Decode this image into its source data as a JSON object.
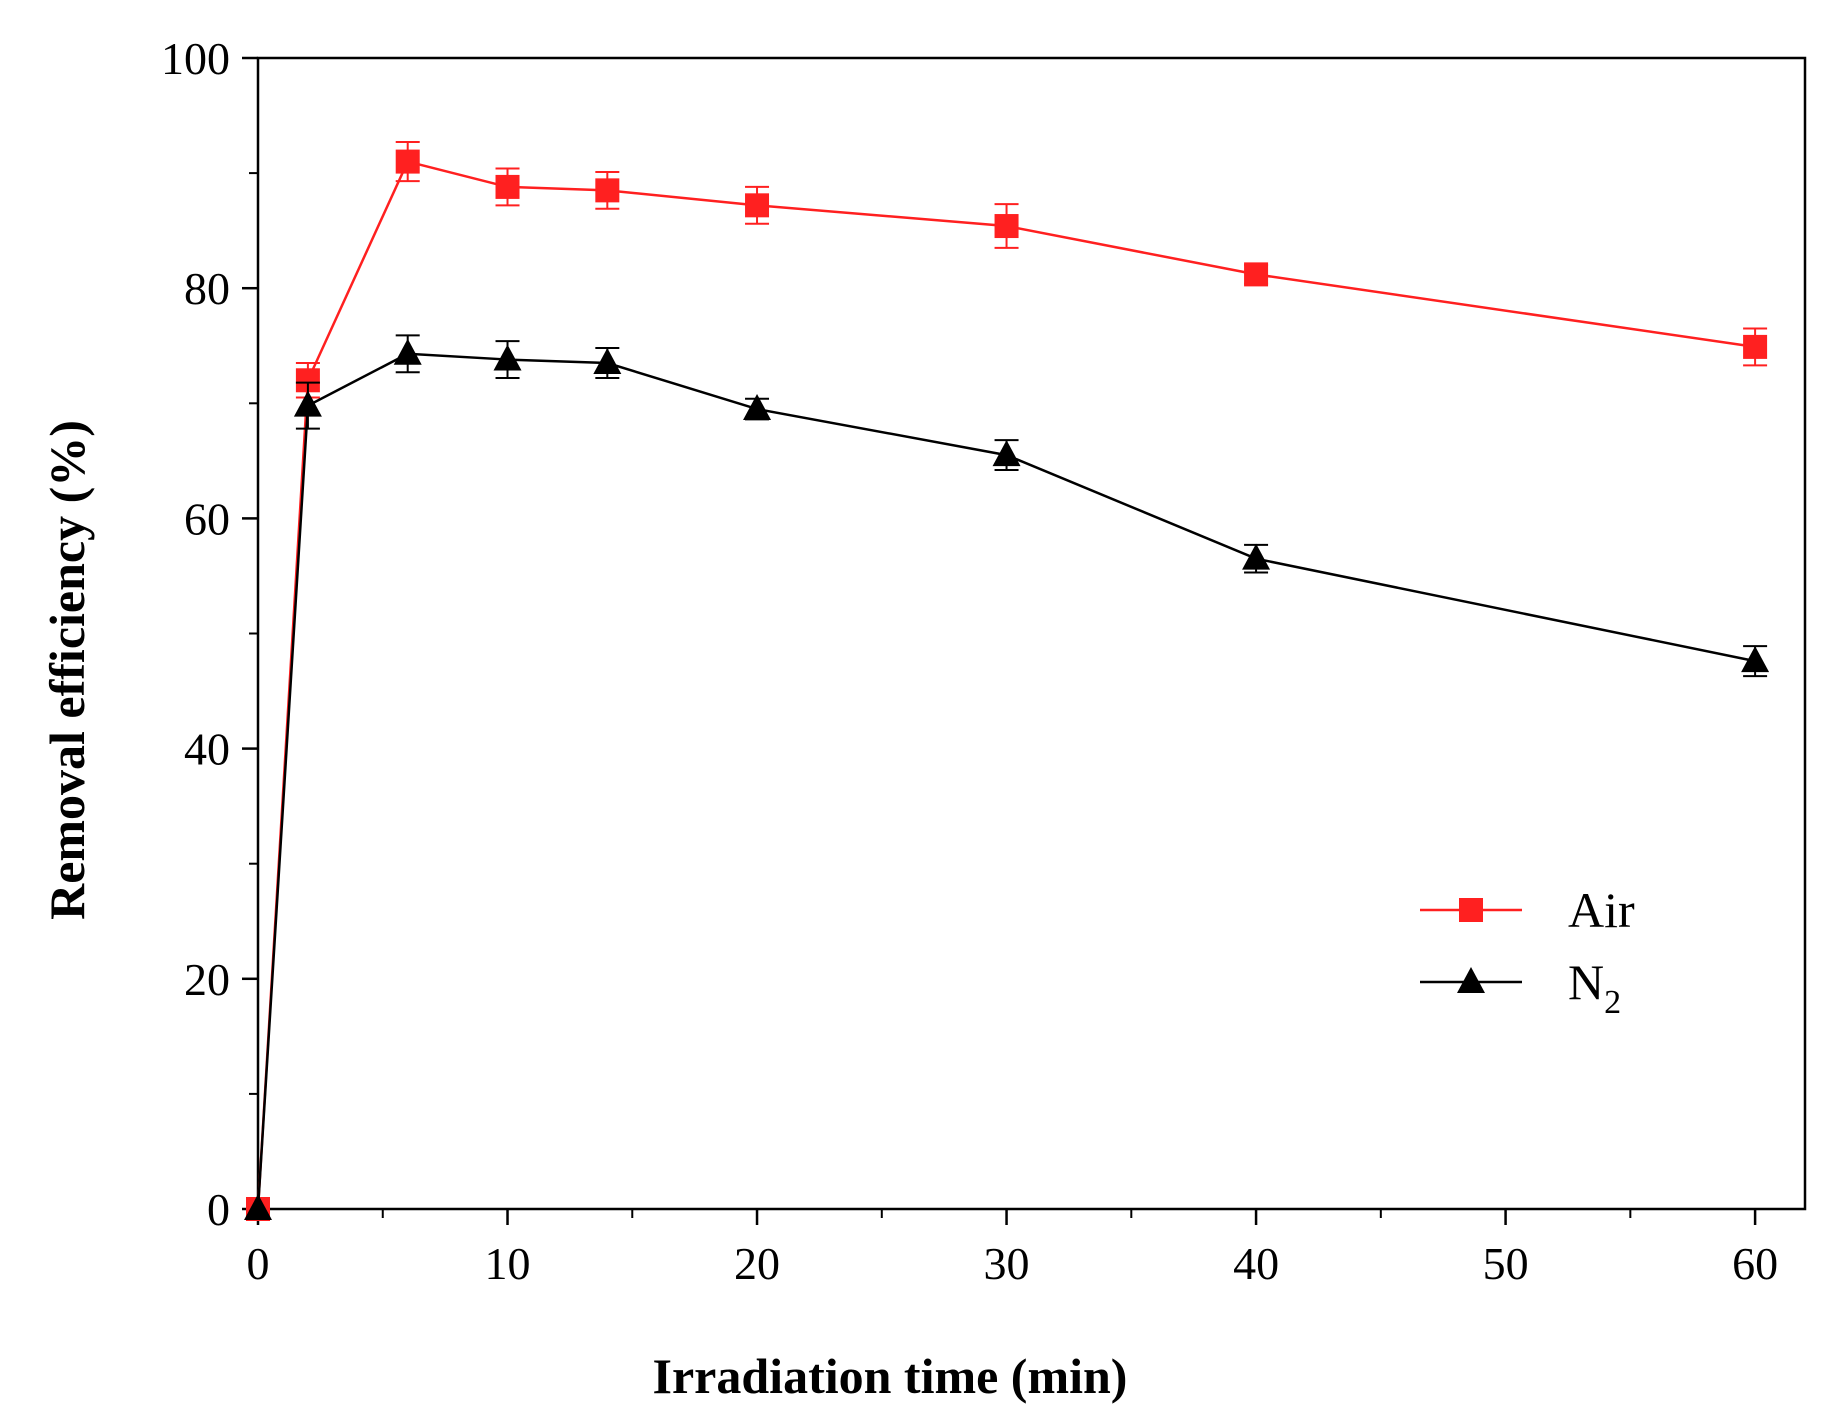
{
  "chart_data": {
    "type": "line",
    "title": "",
    "xlabel": "Irradiation time (min)",
    "ylabel": "Removal efficiency (%)",
    "xlim": [
      0,
      62
    ],
    "ylim": [
      0,
      100
    ],
    "x_ticks": [
      0,
      10,
      20,
      30,
      40,
      50,
      60
    ],
    "y_ticks": [
      0,
      20,
      40,
      60,
      80,
      100
    ],
    "x_minor_step": 5,
    "y_minor_step": 10,
    "legend_position": "center-right",
    "series": [
      {
        "name": "Air",
        "name_main": "Air",
        "name_sub": "",
        "color": "#ff2020",
        "marker": "square",
        "x": [
          0,
          2,
          6,
          10,
          14,
          20,
          30,
          40,
          60
        ],
        "y": [
          0,
          72.0,
          91.0,
          88.8,
          88.5,
          87.2,
          85.4,
          81.2,
          74.9
        ],
        "error": [
          0,
          1.5,
          1.7,
          1.6,
          1.6,
          1.6,
          1.9,
          0.8,
          1.6
        ]
      },
      {
        "name": "N2",
        "name_main": "N",
        "name_sub": "2",
        "color": "#000000",
        "marker": "triangle",
        "x": [
          0,
          2,
          6,
          10,
          14,
          20,
          30,
          40,
          60
        ],
        "y": [
          0,
          69.8,
          74.3,
          73.8,
          73.5,
          69.5,
          65.5,
          56.5,
          47.6
        ],
        "error": [
          0,
          2.0,
          1.6,
          1.6,
          1.3,
          0.9,
          1.3,
          1.2,
          1.3
        ]
      }
    ]
  }
}
